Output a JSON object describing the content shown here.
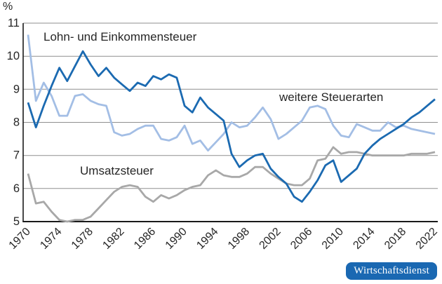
{
  "unit_label": "%",
  "branding": {
    "label": "Wirtschaftsdienst",
    "background": "#1a68b2",
    "text_color": "#ffffff"
  },
  "chart_data": {
    "type": "line",
    "title": "",
    "xlabel": "",
    "ylabel": "%",
    "xlim": [
      1970,
      2022
    ],
    "ylim": [
      5,
      11
    ],
    "grid": true,
    "legend_position": "inline-annotations",
    "y_ticks": [
      5,
      6,
      7,
      8,
      9,
      10,
      11
    ],
    "x_tick_labels": [
      "1970",
      "1974",
      "1978",
      "1982",
      "1986",
      "1990",
      "1994",
      "1998",
      "2002",
      "2006",
      "2010",
      "2014",
      "2018",
      "2022"
    ],
    "x": [
      1970,
      1971,
      1972,
      1973,
      1974,
      1975,
      1976,
      1977,
      1978,
      1979,
      1980,
      1981,
      1982,
      1983,
      1984,
      1985,
      1986,
      1987,
      1988,
      1989,
      1990,
      1991,
      1992,
      1993,
      1994,
      1995,
      1996,
      1997,
      1998,
      1999,
      2000,
      2001,
      2002,
      2003,
      2004,
      2005,
      2006,
      2007,
      2008,
      2009,
      2010,
      2011,
      2012,
      2013,
      2014,
      2015,
      2016,
      2017,
      2018,
      2019,
      2020,
      2021,
      2022
    ],
    "style": {
      "grid_color": "#8f8f8f",
      "axis_color": "#1a1a1a",
      "text_color": "#262626"
    },
    "series": [
      {
        "name": "Lohn- und Einkommensteuer",
        "color": "#1b6ab1",
        "values": [
          8.6,
          7.85,
          8.5,
          9.1,
          9.65,
          9.25,
          9.7,
          10.15,
          9.75,
          9.4,
          9.65,
          9.35,
          9.15,
          8.95,
          9.2,
          9.1,
          9.4,
          9.3,
          9.45,
          9.35,
          8.5,
          8.3,
          8.75,
          8.45,
          8.25,
          8.05,
          7.05,
          6.65,
          6.85,
          7.0,
          7.05,
          6.6,
          6.35,
          6.15,
          5.75,
          5.6,
          5.9,
          6.25,
          6.7,
          6.85,
          6.2,
          6.4,
          6.6,
          7.05,
          7.3,
          7.5,
          7.65,
          7.8,
          7.95,
          8.15,
          8.3,
          8.5,
          8.7
        ]
      },
      {
        "name": "weitere Steuerarten",
        "color": "#a3bee5",
        "values": [
          10.65,
          8.65,
          9.2,
          8.8,
          8.2,
          8.2,
          8.8,
          8.85,
          8.65,
          8.55,
          8.5,
          7.7,
          7.6,
          7.65,
          7.8,
          7.9,
          7.9,
          7.5,
          7.45,
          7.55,
          7.9,
          7.35,
          7.45,
          7.15,
          7.4,
          7.65,
          8.0,
          7.85,
          7.9,
          8.15,
          8.45,
          8.1,
          7.5,
          7.65,
          7.85,
          8.05,
          8.45,
          8.5,
          8.4,
          7.9,
          7.6,
          7.55,
          7.95,
          7.85,
          7.75,
          7.75,
          8.0,
          7.85,
          7.9,
          7.8,
          7.75,
          7.7,
          7.65
        ]
      },
      {
        "name": "Umsatzsteuer",
        "color": "#a8a8a8",
        "values": [
          6.45,
          5.55,
          5.6,
          5.3,
          5.05,
          5.0,
          5.05,
          5.05,
          5.15,
          5.4,
          5.65,
          5.9,
          6.05,
          6.1,
          6.05,
          5.75,
          5.6,
          5.8,
          5.7,
          5.8,
          5.95,
          6.05,
          6.1,
          6.4,
          6.55,
          6.4,
          6.35,
          6.35,
          6.45,
          6.65,
          6.65,
          6.45,
          6.3,
          6.15,
          6.1,
          6.1,
          6.3,
          6.85,
          6.9,
          7.25,
          7.05,
          7.1,
          7.1,
          7.05,
          7.0,
          7.0,
          7.0,
          7.0,
          7.0,
          7.05,
          7.05,
          7.05,
          7.1
        ]
      }
    ]
  }
}
